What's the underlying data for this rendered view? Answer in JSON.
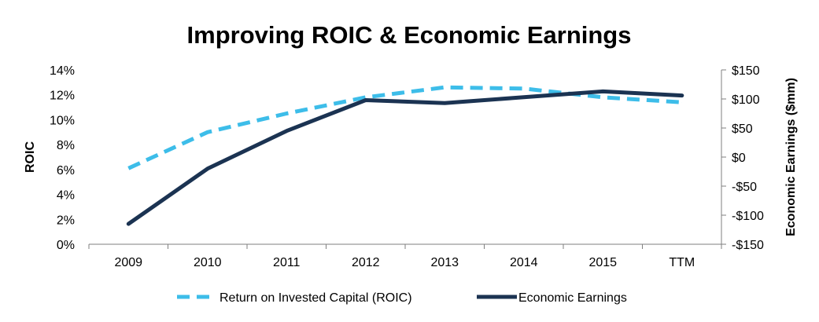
{
  "chart_data": {
    "type": "line",
    "title": "Improving ROIC & Economic Earnings",
    "categories": [
      "2009",
      "2010",
      "2011",
      "2012",
      "2013",
      "2014",
      "2015",
      "TTM"
    ],
    "y_left": {
      "label": "ROIC",
      "ylim": [
        0,
        14
      ],
      "ticks": [
        0,
        2,
        4,
        6,
        8,
        10,
        12,
        14
      ],
      "tick_labels": [
        "0%",
        "2%",
        "4%",
        "6%",
        "8%",
        "10%",
        "12%",
        "14%"
      ]
    },
    "y_right": {
      "label": "Economic Earnings ($mm)",
      "ylim": [
        -150,
        150
      ],
      "ticks": [
        -150,
        -100,
        -50,
        0,
        50,
        100,
        150
      ],
      "tick_labels": [
        "-$150",
        "-$100",
        "-$50",
        "$0",
        "$50",
        "$100",
        "$150"
      ]
    },
    "series": [
      {
        "name": "Return on Invested Capital (ROIC)",
        "axis": "left",
        "style": "dashed",
        "color": "#3dbde9",
        "values": [
          6.1,
          9.0,
          10.5,
          11.8,
          12.6,
          12.5,
          11.8,
          11.4
        ]
      },
      {
        "name": "Economic Earnings",
        "axis": "right",
        "style": "solid",
        "color": "#1b3352",
        "values": [
          -115,
          -20,
          45,
          98,
          93,
          103,
          113,
          106
        ]
      }
    ],
    "legend_position": "bottom",
    "grid": false
  }
}
